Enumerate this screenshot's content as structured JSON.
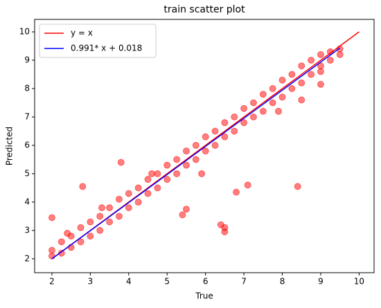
{
  "chart_data": {
    "type": "scatter",
    "title": "train scatter plot",
    "x_label": "True",
    "y_label": "Predicted",
    "xlim": [
      1.55,
      10.39
    ],
    "ylim": [
      1.51,
      10.44
    ],
    "xticks": [
      2,
      3,
      4,
      5,
      6,
      7,
      8,
      9,
      10
    ],
    "yticks": [
      2,
      3,
      4,
      5,
      6,
      7,
      8,
      9,
      10
    ],
    "grid": false,
    "legend": "upper left",
    "points": {
      "color": "#ff0000",
      "x": [
        2,
        2,
        2.25,
        2.25,
        2.5,
        2.5,
        2.75,
        2.75,
        3,
        3,
        3.25,
        3.25,
        3.5,
        3.5,
        3.75,
        3.75,
        4,
        4,
        4.25,
        4.25,
        4.5,
        4.5,
        4.75,
        4.75,
        5,
        5,
        5.25,
        5.25,
        5.5,
        5.5,
        5.75,
        5.75,
        6,
        6,
        6.25,
        6.25,
        6.5,
        6.5,
        6.75,
        6.75,
        7,
        7,
        7.25,
        7.25,
        7.5,
        7.5,
        7.75,
        7.75,
        8,
        8,
        8.25,
        8.25,
        8.5,
        8.5,
        8.75,
        8.75,
        9,
        9,
        9.25,
        9.25,
        9.5,
        9.5,
        2,
        2.4,
        2.8,
        3.3,
        3.8,
        4.6,
        5.4,
        5.5,
        5.9,
        6.4,
        6.5,
        6.5,
        6.8,
        7.1,
        7.9,
        8.4,
        8.5,
        9.0,
        9.0
      ],
      "y": [
        2.3,
        2.1,
        2.6,
        2.2,
        2.8,
        2.4,
        3.1,
        2.6,
        3.3,
        2.8,
        3.5,
        3.0,
        3.8,
        3.3,
        4.1,
        3.5,
        4.3,
        3.8,
        4.5,
        4.0,
        4.8,
        4.3,
        5.0,
        4.5,
        5.3,
        4.8,
        5.5,
        5.0,
        5.8,
        5.3,
        6.0,
        5.5,
        6.3,
        5.8,
        6.5,
        6.0,
        6.8,
        6.3,
        7.0,
        6.5,
        7.3,
        6.8,
        7.5,
        7.0,
        7.8,
        7.2,
        8.0,
        7.5,
        8.3,
        7.7,
        8.5,
        8.0,
        8.8,
        8.2,
        9.0,
        8.5,
        9.2,
        8.8,
        9.3,
        9.0,
        9.4,
        9.2,
        3.45,
        2.9,
        4.55,
        3.8,
        5.4,
        5.0,
        3.55,
        3.75,
        5.0,
        3.2,
        3.1,
        2.95,
        4.35,
        4.6,
        7.2,
        4.55,
        7.6,
        8.15,
        8.6
      ]
    },
    "lines": [
      {
        "name": "y = x",
        "color": "#ff0000",
        "x": [
          2,
          10
        ],
        "y": [
          2,
          10
        ]
      },
      {
        "name": "0.991* x + 0.018",
        "color": "#0000ff",
        "x": [
          2,
          9.5
        ],
        "y": [
          2.0,
          9.43
        ]
      }
    ]
  }
}
